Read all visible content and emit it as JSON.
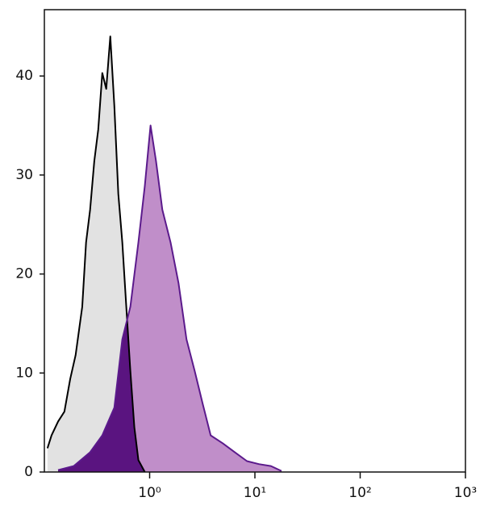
{
  "chart_data": {
    "type": "histogram",
    "xscale": "log",
    "xlim": [
      0.1,
      1000
    ],
    "ylim": [
      0,
      46.7
    ],
    "xticks": [
      {
        "value": 1,
        "label": "10⁰"
      },
      {
        "value": 10,
        "label": "10¹"
      },
      {
        "value": 100,
        "label": "10²"
      },
      {
        "value": 1000,
        "label": "10³"
      }
    ],
    "yticks": [
      0,
      10,
      20,
      30,
      40
    ],
    "series": [
      {
        "color": "#000000",
        "fill": "#e2e2e2",
        "x": [
          0.107,
          0.117,
          0.135,
          0.155,
          0.176,
          0.198,
          0.229,
          0.249,
          0.272,
          0.298,
          0.325,
          0.355,
          0.387,
          0.423,
          0.462,
          0.504,
          0.55,
          0.6,
          0.656,
          0.716,
          0.782,
          0.9
        ],
        "values": [
          2.4,
          3.7,
          5.1,
          6.1,
          9.4,
          11.8,
          16.7,
          23.2,
          26.5,
          31.4,
          34.6,
          40.3,
          38.7,
          44,
          37,
          28.1,
          23.2,
          16.7,
          10.2,
          4.5,
          1.2,
          0
        ]
      },
      {
        "color": "#5b1a8c",
        "fill": "#c08ec9",
        "overlap": "#5a1480",
        "x": [
          0.135,
          0.19,
          0.272,
          0.355,
          0.462,
          0.55,
          0.656,
          0.782,
          0.9,
          1.02,
          1.15,
          1.32,
          1.58,
          1.88,
          2.24,
          2.68,
          3.19,
          3.8,
          4.95,
          6.43,
          8.4,
          10.9,
          14.2,
          17.9
        ],
        "values": [
          0.2,
          0.6,
          2,
          3.7,
          6.5,
          13.4,
          16.7,
          23.2,
          28.9,
          35,
          31.4,
          26.5,
          23.2,
          19.1,
          13.4,
          10.2,
          6.9,
          3.7,
          2.9,
          2,
          1.1,
          0.8,
          0.6,
          0.1
        ]
      }
    ]
  }
}
